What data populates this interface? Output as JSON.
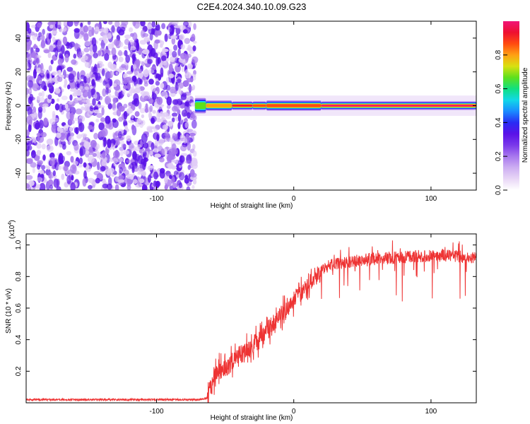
{
  "title": "C2E4.2024.340.10.09.G23",
  "colors": {
    "snr_line": "#ee3333",
    "background": "#ffffff",
    "axes": "#000000",
    "colormap": [
      "#ffffff",
      "#e8d6f6",
      "#cdaef2",
      "#a878ee",
      "#7a38ea",
      "#5a12e8",
      "#2a2cf4",
      "#1a8cff",
      "#11d8e8",
      "#10e080",
      "#5ee01c",
      "#d8e010",
      "#ffa012",
      "#ff4a10",
      "#ee1030",
      "#f01478"
    ]
  },
  "chart_data": [
    {
      "type": "heatmap",
      "title": "",
      "xlabel": "Height of straight line (km)",
      "ylabel": "Frequency (Hz)",
      "xlim": [
        -195,
        133
      ],
      "ylim": [
        -50,
        50
      ],
      "x_ticks": [
        -100,
        0,
        100
      ],
      "x_tick_labels": [
        "-100",
        "0",
        "100"
      ],
      "y_ticks": [
        -40,
        -20,
        0,
        20,
        40
      ],
      "y_tick_labels": [
        "-40",
        "-20",
        "0",
        "20",
        "40"
      ],
      "colorbar": {
        "label": "Normalized spectral amplitude",
        "range": [
          0.0,
          1.0
        ],
        "ticks": [
          0.0,
          0.2,
          0.4,
          0.6,
          0.8
        ],
        "tick_labels": [
          "0.0",
          "0.2",
          "0.4",
          "0.6",
          "0.8"
        ]
      },
      "noise_region": {
        "x_range": [
          -195,
          -72
        ],
        "freq_range": [
          -50,
          50
        ],
        "typical_amplitude": [
          0.05,
          0.3
        ]
      },
      "signal_band": {
        "center_freq_hz": 0,
        "segments": [
          {
            "x": [
              -72,
              -64
            ],
            "freq_halfwidth": 4.5,
            "peak_amplitude": 0.65
          },
          {
            "x": [
              -64,
              -45
            ],
            "freq_halfwidth": 3.0,
            "peak_amplitude": 0.8
          },
          {
            "x": [
              -45,
              -30
            ],
            "freq_halfwidth": 2.5,
            "peak_amplitude": 0.95
          },
          {
            "x": [
              -30,
              -20
            ],
            "freq_halfwidth": 2.5,
            "peak_amplitude": 0.9
          },
          {
            "x": [
              -20,
              20
            ],
            "freq_halfwidth": 3.0,
            "peak_amplitude": 0.9
          },
          {
            "x": [
              20,
              133
            ],
            "freq_halfwidth": 2.5,
            "peak_amplitude": 1.0
          }
        ]
      }
    },
    {
      "type": "line",
      "title": "",
      "xlabel": "Height of straight line (km)",
      "ylabel": "SNR (10 * v/v)",
      "y_multiplier_label": "(x10",
      "y_multiplier_exp": "4",
      "xlim": [
        -195,
        133
      ],
      "ylim": [
        0.0,
        1.07
      ],
      "x_ticks": [
        -100,
        0,
        100
      ],
      "x_tick_labels": [
        "-100",
        "0",
        "100"
      ],
      "y_ticks": [
        0.2,
        0.4,
        0.6,
        0.8,
        1.0
      ],
      "y_tick_labels": [
        "0.2",
        "0.4",
        "0.6",
        "0.8",
        "1.0"
      ],
      "series": [
        {
          "x": [
            -195,
            -150,
            -100,
            -70,
            -63,
            -58,
            -55,
            -50,
            -45,
            -40,
            -35,
            -30,
            -25,
            -20,
            -15,
            -10,
            -5,
            0,
            5,
            10,
            15,
            20,
            25,
            30,
            35,
            40,
            45,
            50,
            55,
            60,
            65,
            70,
            75,
            80,
            85,
            90,
            95,
            100,
            105,
            110,
            115,
            120,
            125,
            133
          ],
          "y": [
            0.02,
            0.02,
            0.02,
            0.02,
            0.03,
            0.15,
            0.22,
            0.22,
            0.26,
            0.3,
            0.33,
            0.37,
            0.4,
            0.45,
            0.5,
            0.55,
            0.6,
            0.65,
            0.7,
            0.74,
            0.78,
            0.83,
            0.87,
            0.88,
            0.88,
            0.89,
            0.9,
            0.9,
            0.91,
            0.91,
            0.92,
            0.92,
            0.92,
            0.92,
            0.93,
            0.93,
            0.93,
            0.93,
            0.93,
            0.93,
            0.93,
            0.93,
            0.92,
            0.92
          ]
        }
      ]
    }
  ]
}
